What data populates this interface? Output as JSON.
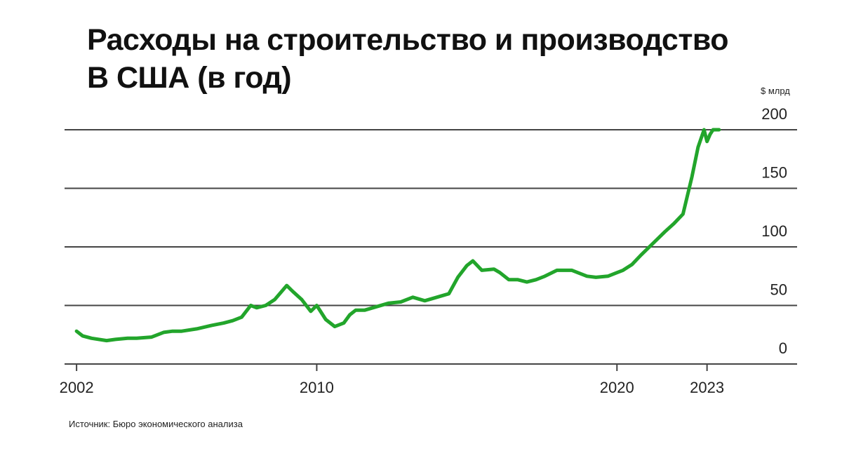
{
  "title_line1": "Расходы на строительство и производство",
  "title_line2": "В США (в год)",
  "unit_label": "$ млрд",
  "source": "Источник: Бюро экономического анализа",
  "colors": {
    "line": "#22a52b",
    "grid": "#444444",
    "text": "#111111"
  },
  "chart_data": {
    "type": "line",
    "title": "Расходы на строительство и производство В США (в год)",
    "ylabel": "$ млрд",
    "xlabel": "",
    "ylim": [
      0,
      200
    ],
    "xlim": [
      2001.6,
      2026.0
    ],
    "yticks": [
      0,
      50,
      100,
      150,
      200
    ],
    "xticks": [
      2002,
      2010,
      2020,
      2023
    ],
    "ytick_labels": [
      "0",
      "50",
      "100",
      "150",
      "200"
    ],
    "xtick_labels": [
      "2002",
      "2010",
      "2020",
      "2023"
    ],
    "grid": "horizontal",
    "series": [
      {
        "x": [
          2002.0,
          2002.2,
          2002.5,
          2003.0,
          2003.3,
          2003.7,
          2004.0,
          2004.5,
          2004.9,
          2005.2,
          2005.5,
          2006.0,
          2006.5,
          2006.9,
          2007.2,
          2007.5,
          2007.8,
          2008.0,
          2008.3,
          2008.6,
          2009.0,
          2009.2,
          2009.5,
          2009.8,
          2010.0,
          2010.3,
          2010.6,
          2010.9,
          2011.1,
          2011.3,
          2011.6,
          2012.0,
          2012.4,
          2012.8,
          2013.2,
          2013.6,
          2014.0,
          2014.4,
          2014.7,
          2015.0,
          2015.2,
          2015.5,
          2015.9,
          2016.1,
          2016.4,
          2016.7,
          2017.0,
          2017.3,
          2017.6,
          2018.0,
          2018.5,
          2019.0,
          2019.3,
          2019.7,
          2020.0,
          2020.2,
          2020.5,
          2020.8,
          2021.2,
          2021.6,
          2021.9,
          2022.2,
          2022.5,
          2022.7,
          2022.9,
          2023.0,
          2023.1,
          2023.2,
          2023.4
        ],
        "y": [
          28,
          24,
          22,
          20,
          21,
          22,
          22,
          23,
          27,
          28,
          28,
          30,
          33,
          35,
          37,
          40,
          50,
          48,
          50,
          55,
          67,
          62,
          55,
          45,
          50,
          38,
          32,
          35,
          42,
          46,
          46,
          49,
          52,
          53,
          57,
          54,
          57,
          60,
          74,
          84,
          88,
          80,
          81,
          78,
          72,
          72,
          70,
          72,
          75,
          80,
          80,
          75,
          74,
          75,
          78,
          80,
          85,
          93,
          103,
          113,
          120,
          128,
          160,
          185,
          200,
          190,
          196,
          200,
          200
        ]
      }
    ]
  }
}
